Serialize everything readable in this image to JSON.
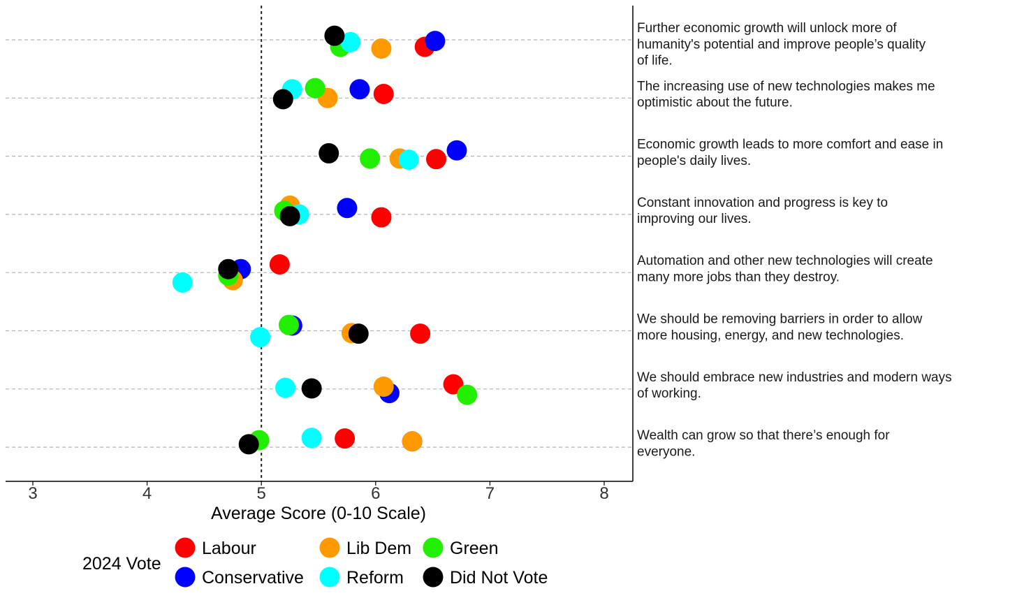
{
  "chart_data": {
    "type": "scatter",
    "xlabel": "Average Score (0-10 Scale)",
    "xlim": [
      2.75,
      8.25
    ],
    "xticks": [
      "3",
      "4",
      "5",
      "6",
      "7",
      "8"
    ],
    "reference_line_x": 5,
    "legend_title": "2024 Vote",
    "statements": [
      "Further economic growth will unlock more of humanity's potential and improve people’s quality of life.",
      "The increasing use of new technologies makes me optimistic about the future.",
      "Economic growth leads to more comfort and ease in people's daily lives.",
      "Constant innovation and progress is key to improving our lives.",
      "Automation and other new technologies will create many more jobs than they destroy.",
      "We should be removing barriers in order to allow more housing, energy, and new technologies.",
      "We should embrace new industries and modern ways of working.",
      "Wealth can grow so that there’s enough for everyone."
    ],
    "statement_lines": [
      [
        "Further economic growth will unlock more of",
        "humanity's potential and improve people’s quality",
        "of life."
      ],
      [
        "The increasing use of new technologies makes me",
        "optimistic about the future."
      ],
      [
        "Economic growth leads to more comfort and ease in",
        "people's daily lives."
      ],
      [
        "Constant innovation and progress is key to",
        "improving our lives."
      ],
      [
        "Automation and other new technologies will create",
        "many more jobs than they destroy."
      ],
      [
        "We should be removing barriers in order to allow",
        "more housing, energy, and new technologies."
      ],
      [
        "We should embrace new industries and modern ways",
        "of working."
      ],
      [
        "Wealth can grow so that there’s enough for",
        "everyone."
      ]
    ],
    "series": [
      {
        "name": "Labour",
        "color": "#ff0000",
        "values": [
          6.43,
          6.07,
          6.53,
          6.05,
          5.16,
          6.39,
          6.68,
          5.73
        ],
        "jitter": [
          0.12,
          -0.07,
          0.05,
          0.05,
          -0.14,
          0.05,
          -0.08,
          -0.15
        ]
      },
      {
        "name": "Conservative",
        "color": "#0000ff",
        "values": [
          6.52,
          5.86,
          6.71,
          5.75,
          4.82,
          5.27,
          6.12,
          6.32
        ],
        "jitter": [
          0.02,
          -0.15,
          -0.1,
          -0.11,
          -0.06,
          -0.09,
          0.07,
          -0.1
        ]
      },
      {
        "name": "Lib Dem",
        "color": "#ff9900",
        "values": [
          6.05,
          5.58,
          6.21,
          5.25,
          4.75,
          5.79,
          6.07,
          6.32
        ],
        "jitter": [
          0.15,
          0.0,
          0.04,
          -0.15,
          0.13,
          0.04,
          -0.04,
          -0.1
        ]
      },
      {
        "name": "Green",
        "color": "#22ee00",
        "values": [
          5.69,
          5.47,
          5.95,
          5.2,
          4.71,
          5.24,
          6.8,
          4.98
        ],
        "jitter": [
          0.12,
          -0.17,
          0.04,
          -0.06,
          0.05,
          -0.1,
          0.1,
          -0.12
        ]
      },
      {
        "name": "Reform",
        "color": "#00ffff",
        "values": [
          5.78,
          5.27,
          6.29,
          5.33,
          4.31,
          4.99,
          5.21,
          5.44
        ],
        "jitter": [
          0.04,
          -0.15,
          0.06,
          0.0,
          0.17,
          0.11,
          -0.02,
          -0.16
        ]
      },
      {
        "name": "Did Not Vote",
        "color": "#000000",
        "values": [
          5.64,
          5.19,
          5.59,
          5.25,
          4.71,
          5.85,
          5.44,
          4.89
        ],
        "jitter": [
          -0.07,
          0.02,
          -0.05,
          0.03,
          -0.06,
          0.05,
          -0.01,
          -0.05
        ]
      }
    ]
  }
}
